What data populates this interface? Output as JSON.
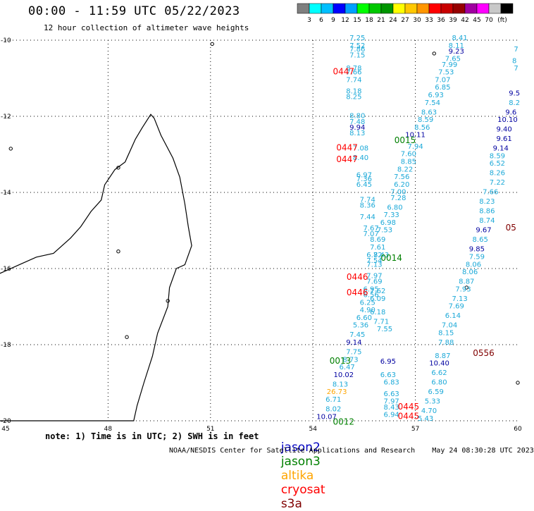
{
  "header": {
    "title": "00:00 - 11:59 UTC 05/22/2023",
    "subtitle": "12 hour collection of altimeter wave heights"
  },
  "color_scale": {
    "colors": [
      "#7f7f7f",
      "#00ffff",
      "#00bfff",
      "#0000ff",
      "#00a0ff",
      "#00ff00",
      "#00c800",
      "#009600",
      "#ffff00",
      "#ffc800",
      "#ff9600",
      "#ff0000",
      "#c80000",
      "#960000",
      "#a000a0",
      "#ff00ff",
      "#c8c8c8",
      "#000000"
    ],
    "labels": [
      "3",
      "6",
      "9",
      "12",
      "15",
      "18",
      "21",
      "24",
      "27",
      "30",
      "33",
      "36",
      "39",
      "42",
      "45",
      "70",
      "(ft)"
    ]
  },
  "map": {
    "lat_labels": [
      "-10",
      "-12",
      "-14",
      "-16",
      "-18",
      "-20"
    ],
    "lon_labels": [
      "45",
      "48",
      "51",
      "54",
      "57",
      "60"
    ],
    "colors": {
      "jason2": "#0000c0",
      "jason3": "#008000",
      "altika": "#ffa500",
      "cryosat": "#ff0000",
      "s3a": "#800000",
      "wave_light": "#1ca9d8",
      "wave_dark": "#0000a0"
    },
    "pass_labels": [
      {
        "text": "0447",
        "c": "cryosat",
        "lon": 54.9,
        "lat": -10.9
      },
      {
        "text": "0447",
        "c": "cryosat",
        "lon": 55.0,
        "lat": -12.9
      },
      {
        "text": "0447",
        "c": "cryosat",
        "lon": 55.0,
        "lat": -13.2
      },
      {
        "text": "0015",
        "c": "jason3",
        "lon": 56.7,
        "lat": -12.7
      },
      {
        "text": "0014",
        "c": "jason3",
        "lon": 56.3,
        "lat": -15.8
      },
      {
        "text": "0446",
        "c": "cryosat",
        "lon": 55.3,
        "lat": -16.3
      },
      {
        "text": "0446",
        "c": "cryosat",
        "lon": 55.3,
        "lat": -16.7
      },
      {
        "text": "0556",
        "c": "s3a",
        "lon": 59.0,
        "lat": -18.3
      },
      {
        "text": "0013",
        "c": "jason3",
        "lon": 54.8,
        "lat": -18.5
      },
      {
        "text": "0445",
        "c": "cryosat",
        "lon": 56.8,
        "lat": -19.7
      },
      {
        "text": "0445",
        "c": "cryosat",
        "lon": 56.8,
        "lat": -19.95
      },
      {
        "text": "0012",
        "c": "jason3",
        "lon": 54.9,
        "lat": -20.1
      },
      {
        "text": "05",
        "c": "s3a",
        "lon": 59.8,
        "lat": -15.0
      }
    ],
    "wave_values": [
      {
        "t": "7.25",
        "lon": 55.3,
        "lat": -10.0
      },
      {
        "t": "7.52",
        "lon": 55.3,
        "lat": -10.2
      },
      {
        "t": "7.86",
        "lon": 55.3,
        "lat": -10.3
      },
      {
        "t": "7.15",
        "lon": 55.3,
        "lat": -10.45
      },
      {
        "t": "8.78",
        "lon": 55.2,
        "lat": -10.8
      },
      {
        "t": "7.66",
        "lon": 55.2,
        "lat": -10.9
      },
      {
        "t": "7.74",
        "lon": 55.2,
        "lat": -11.1
      },
      {
        "t": "8.18",
        "lon": 55.2,
        "lat": -11.4
      },
      {
        "t": "8.25",
        "lon": 55.2,
        "lat": -11.55
      },
      {
        "t": "8.80",
        "lon": 55.3,
        "lat": -12.05
      },
      {
        "t": "7.48",
        "lon": 55.3,
        "lat": -12.2
      },
      {
        "t": "9.94",
        "lon": 55.3,
        "lat": -12.35,
        "d": 1
      },
      {
        "t": "8.13",
        "lon": 55.3,
        "lat": -12.5
      },
      {
        "t": "7.08",
        "lon": 55.4,
        "lat": -12.9
      },
      {
        "t": "8.40",
        "lon": 55.4,
        "lat": -13.15
      },
      {
        "t": "6.97",
        "lon": 55.5,
        "lat": -13.6
      },
      {
        "t": "7.36",
        "lon": 55.5,
        "lat": -13.7
      },
      {
        "t": "6.45",
        "lon": 55.5,
        "lat": -13.85
      },
      {
        "t": "7.74",
        "lon": 55.6,
        "lat": -14.25
      },
      {
        "t": "8.36",
        "lon": 55.6,
        "lat": -14.4
      },
      {
        "t": "7.44",
        "lon": 55.6,
        "lat": -14.7
      },
      {
        "t": "7.67",
        "lon": 55.7,
        "lat": -15.0
      },
      {
        "t": "7.07",
        "lon": 55.7,
        "lat": -15.15
      },
      {
        "t": "8.69",
        "lon": 55.9,
        "lat": -15.3
      },
      {
        "t": "7.61",
        "lon": 55.9,
        "lat": -15.5
      },
      {
        "t": "6.72",
        "lon": 55.8,
        "lat": -15.7
      },
      {
        "t": "7.54",
        "lon": 55.8,
        "lat": -15.85
      },
      {
        "t": "7.13",
        "lon": 55.8,
        "lat": -15.95
      },
      {
        "t": "7.97",
        "lon": 55.8,
        "lat": -16.25
      },
      {
        "t": "7.69",
        "lon": 55.8,
        "lat": -16.4
      },
      {
        "t": "6.95",
        "lon": 55.7,
        "lat": -16.6
      },
      {
        "t": "6.56",
        "lon": 55.7,
        "lat": -16.75
      },
      {
        "t": "6.25",
        "lon": 55.6,
        "lat": -16.95
      },
      {
        "t": "4.90",
        "lon": 55.6,
        "lat": -17.15
      },
      {
        "t": "6.18",
        "lon": 55.9,
        "lat": -17.2
      },
      {
        "t": "6.60",
        "lon": 55.5,
        "lat": -17.35
      },
      {
        "t": "5.36",
        "lon": 55.4,
        "lat": -17.55
      },
      {
        "t": "7.45",
        "lon": 55.3,
        "lat": -17.8
      },
      {
        "t": "9.14",
        "lon": 55.2,
        "lat": -18.0,
        "d": 1
      },
      {
        "t": "7.75",
        "lon": 55.2,
        "lat": -18.25
      },
      {
        "t": "8.73",
        "lon": 55.1,
        "lat": -18.45
      },
      {
        "t": "6.47",
        "lon": 55.0,
        "lat": -18.65
      },
      {
        "t": "10.02",
        "lon": 54.9,
        "lat": -18.85,
        "d": 1
      },
      {
        "t": "8.13",
        "lon": 54.8,
        "lat": -19.1
      },
      {
        "t": "26.73",
        "lon": 54.7,
        "lat": -19.3,
        "a": 1
      },
      {
        "t": "6.71",
        "lon": 54.6,
        "lat": -19.5
      },
      {
        "t": "8.02",
        "lon": 54.6,
        "lat": -19.75
      },
      {
        "t": "10.07",
        "lon": 54.4,
        "lat": -19.95,
        "d": 1
      },
      {
        "t": "7.71",
        "lon": 56.0,
        "lat": -17.45
      },
      {
        "t": "7.55",
        "lon": 56.1,
        "lat": -17.65
      },
      {
        "t": "6.95",
        "lon": 56.2,
        "lat": -18.5,
        "d": 1
      },
      {
        "t": "6.63",
        "lon": 56.2,
        "lat": -18.85
      },
      {
        "t": "6.83",
        "lon": 56.3,
        "lat": -19.05
      },
      {
        "t": "6.63",
        "lon": 56.3,
        "lat": -19.35
      },
      {
        "t": "7.97",
        "lon": 56.3,
        "lat": -19.55
      },
      {
        "t": "8.43",
        "lon": 56.3,
        "lat": -19.7
      },
      {
        "t": "6.94",
        "lon": 56.3,
        "lat": -19.9
      },
      {
        "t": "8.41",
        "lon": 58.3,
        "lat": -10.0
      },
      {
        "t": "8.11",
        "lon": 58.2,
        "lat": -10.2
      },
      {
        "t": "9.23",
        "lon": 58.2,
        "lat": -10.35,
        "d": 1
      },
      {
        "t": "7.65",
        "lon": 58.1,
        "lat": -10.55
      },
      {
        "t": "7.99",
        "lon": 58.0,
        "lat": -10.7
      },
      {
        "t": "7.53",
        "lon": 57.9,
        "lat": -10.9
      },
      {
        "t": "7.07",
        "lon": 57.8,
        "lat": -11.1
      },
      {
        "t": "6.85",
        "lon": 57.8,
        "lat": -11.3
      },
      {
        "t": "6.93",
        "lon": 57.6,
        "lat": -11.5
      },
      {
        "t": "7.54",
        "lon": 57.5,
        "lat": -11.7
      },
      {
        "t": "8.63",
        "lon": 57.4,
        "lat": -11.95
      },
      {
        "t": "8.59",
        "lon": 57.3,
        "lat": -12.15
      },
      {
        "t": "8.56",
        "lon": 57.2,
        "lat": -12.35
      },
      {
        "t": "10.11",
        "lon": 57.0,
        "lat": -12.55,
        "d": 1
      },
      {
        "t": "7.94",
        "lon": 57.0,
        "lat": -12.85
      },
      {
        "t": "7.60",
        "lon": 56.8,
        "lat": -13.05
      },
      {
        "t": "8.85",
        "lon": 56.8,
        "lat": -13.25
      },
      {
        "t": "8.22",
        "lon": 56.7,
        "lat": -13.45
      },
      {
        "t": "7.56",
        "lon": 56.6,
        "lat": -13.65
      },
      {
        "t": "6.20",
        "lon": 56.6,
        "lat": -13.85
      },
      {
        "t": "7.00",
        "lon": 56.5,
        "lat": -14.05
      },
      {
        "t": "7.28",
        "lon": 56.5,
        "lat": -14.2
      },
      {
        "t": "6.80",
        "lon": 56.4,
        "lat": -14.45
      },
      {
        "t": "7.33",
        "lon": 56.3,
        "lat": -14.65
      },
      {
        "t": "6.98",
        "lon": 56.2,
        "lat": -14.85
      },
      {
        "t": "7.53",
        "lon": 56.1,
        "lat": -15.05
      },
      {
        "t": "8.43",
        "lon": 56.0,
        "lat": -15.7
      },
      {
        "t": "7.62",
        "lon": 55.9,
        "lat": -16.65
      },
      {
        "t": "6.09",
        "lon": 55.9,
        "lat": -16.85
      },
      {
        "t": "9.40",
        "lon": 59.6,
        "lat": -12.4,
        "d": 1
      },
      {
        "t": "9.61",
        "lon": 59.6,
        "lat": -12.65,
        "d": 1
      },
      {
        "t": "9.14",
        "lon": 59.5,
        "lat": -12.9,
        "d": 1
      },
      {
        "t": "8.59",
        "lon": 59.4,
        "lat": -13.1
      },
      {
        "t": "6.52",
        "lon": 59.4,
        "lat": -13.3
      },
      {
        "t": "8.26",
        "lon": 59.4,
        "lat": -13.55
      },
      {
        "t": "7.22",
        "lon": 59.4,
        "lat": -13.8
      },
      {
        "t": "7.66",
        "lon": 59.2,
        "lat": -14.05
      },
      {
        "t": "8.23",
        "lon": 59.1,
        "lat": -14.3
      },
      {
        "t": "8.86",
        "lon": 59.1,
        "lat": -14.55
      },
      {
        "t": "8.74",
        "lon": 59.1,
        "lat": -14.8
      },
      {
        "t": "9.67",
        "lon": 59.0,
        "lat": -15.05,
        "d": 1
      },
      {
        "t": "8.65",
        "lon": 58.9,
        "lat": -15.3
      },
      {
        "t": "9.85",
        "lon": 58.8,
        "lat": -15.55,
        "d": 1
      },
      {
        "t": "7.59",
        "lon": 58.8,
        "lat": -15.75
      },
      {
        "t": "8.06",
        "lon": 58.7,
        "lat": -15.95
      },
      {
        "t": "8.06",
        "lon": 58.6,
        "lat": -16.15
      },
      {
        "t": "8.87",
        "lon": 58.5,
        "lat": -16.4
      },
      {
        "t": "7.93",
        "lon": 58.4,
        "lat": -16.6
      },
      {
        "t": "7.13",
        "lon": 58.3,
        "lat": -16.85
      },
      {
        "t": "7.69",
        "lon": 58.2,
        "lat": -17.05
      },
      {
        "t": "6.14",
        "lon": 58.1,
        "lat": -17.3
      },
      {
        "t": "7.04",
        "lon": 58.0,
        "lat": -17.55
      },
      {
        "t": "8.15",
        "lon": 57.9,
        "lat": -17.75
      },
      {
        "t": "7.88",
        "lon": 57.9,
        "lat": -18.0
      },
      {
        "t": "8.87",
        "lon": 57.8,
        "lat": -18.35
      },
      {
        "t": "10.40",
        "lon": 57.7,
        "lat": -18.55,
        "d": 1
      },
      {
        "t": "6.62",
        "lon": 57.7,
        "lat": -18.8
      },
      {
        "t": "6.80",
        "lon": 57.7,
        "lat": -19.05
      },
      {
        "t": "6.59",
        "lon": 57.6,
        "lat": -19.3
      },
      {
        "t": "5.33",
        "lon": 57.5,
        "lat": -19.55
      },
      {
        "t": "4.70",
        "lon": 57.4,
        "lat": -19.8
      },
      {
        "t": "5.43",
        "lon": 57.3,
        "lat": -20.0
      },
      {
        "t": "9.5",
        "lon": 59.9,
        "lat": -11.45,
        "d": 1
      },
      {
        "t": "8.2",
        "lon": 59.9,
        "lat": -11.7
      },
      {
        "t": "9.6",
        "lon": 59.8,
        "lat": -11.95,
        "d": 1
      },
      {
        "t": "10.10",
        "lon": 59.7,
        "lat": -12.15,
        "d": 1
      },
      {
        "t": "8",
        "lon": 59.9,
        "lat": -10.6
      },
      {
        "t": "7",
        "lon": 59.95,
        "lat": -10.8
      },
      {
        "t": "7",
        "lon": 59.95,
        "lat": -10.3
      }
    ]
  },
  "footer": {
    "note": "note: 1) Time is in UTC; 2) SWH is in feet",
    "legend": [
      {
        "label": "jason2",
        "key": "jason2"
      },
      {
        "label": "jason3",
        "key": "jason3"
      },
      {
        "label": "altika",
        "key": "altika"
      },
      {
        "label": "cryosat",
        "key": "cryosat"
      },
      {
        "label": "s3a",
        "key": "s3a"
      }
    ],
    "credit": "NOAA/NESDIS Center for Satellite Applications and Research    May 24 08:30:28 UTC 2023"
  }
}
